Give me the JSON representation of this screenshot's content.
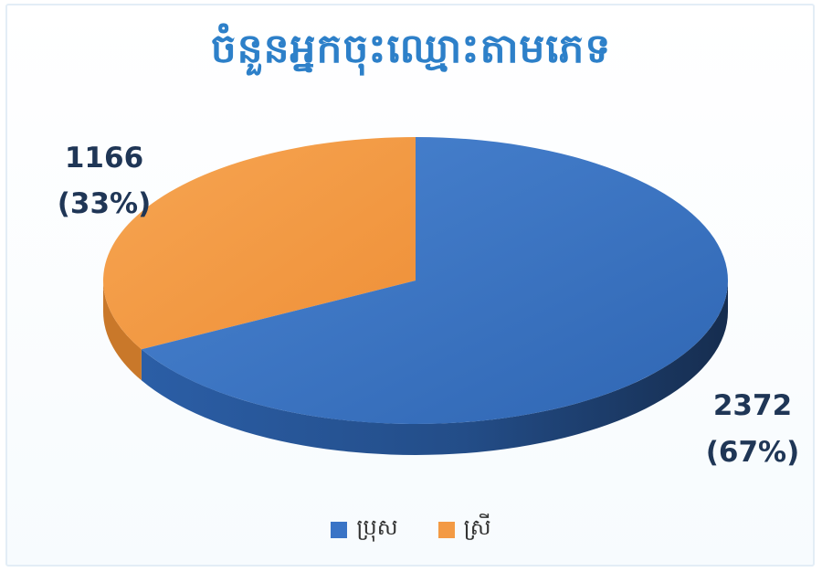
{
  "chart_data": {
    "type": "pie",
    "title": "ចំនួនអ្នកចុះឈ្មោះតាមភេទ",
    "categories": [
      "ប្រុស",
      "ស្រី"
    ],
    "values": [
      2372,
      1166
    ],
    "percent_labels": [
      "(67%)",
      "(33%)"
    ],
    "colors": [
      "#3a74c6",
      "#f39a44"
    ],
    "legend_position": "bottom",
    "style": "3d"
  }
}
